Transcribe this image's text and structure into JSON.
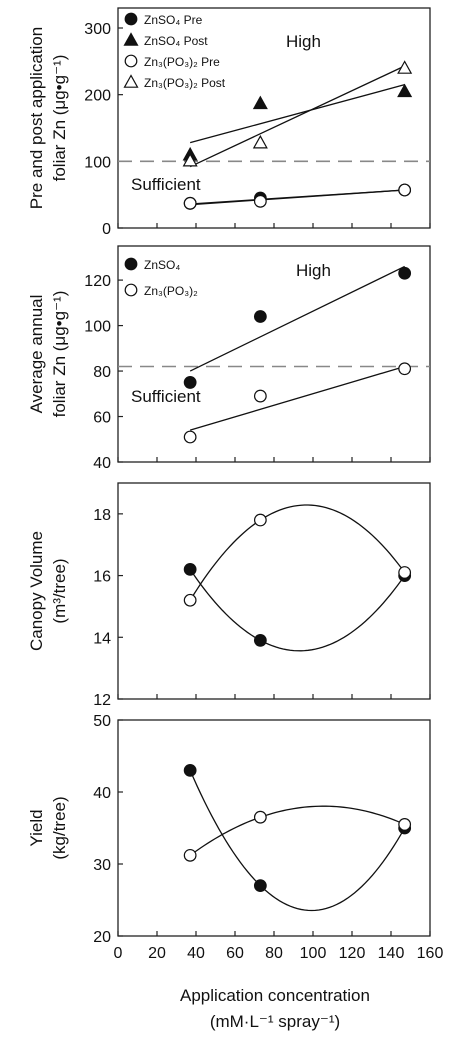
{
  "figure": {
    "xlabel_line1": "Application concentration",
    "xlabel_line2": "(mM·L⁻¹ spray⁻¹)"
  },
  "chart_data": [
    {
      "type": "scatter",
      "ylabel_line1": "Pre and post application",
      "ylabel_line2": "foliar Zn (μg•g⁻¹)",
      "xlim": [
        0,
        160
      ],
      "ylim": [
        0,
        330
      ],
      "xticks": [],
      "yticks": [
        0,
        100,
        200,
        300
      ],
      "reference_line": 100,
      "region_labels": {
        "high": "High",
        "sufficient": "Sufficient"
      },
      "legend_position": "top-left",
      "series": [
        {
          "name": "ZnSO₄ Pre",
          "marker": "circle",
          "filled": true,
          "x": [
            37,
            73,
            147
          ],
          "y": [
            37,
            45,
            57
          ],
          "fit": "linear",
          "fit_line": [
            [
              37,
              36
            ],
            [
              147,
              57
            ]
          ]
        },
        {
          "name": "ZnSO₄ Post",
          "marker": "triangle",
          "filled": true,
          "x": [
            37,
            73,
            147
          ],
          "y": [
            110,
            187,
            205
          ],
          "fit": "linear",
          "fit_line": [
            [
              37,
              128
            ],
            [
              147,
              215
            ]
          ]
        },
        {
          "name": "Zn₃(PO₃)₂ Pre",
          "marker": "circle",
          "filled": false,
          "x": [
            37,
            73,
            147
          ],
          "y": [
            37,
            40,
            57
          ],
          "fit": "linear",
          "fit_line": [
            [
              37,
              35
            ],
            [
              147,
              57
            ]
          ]
        },
        {
          "name": "Zn₃(PO₃)₂ Post",
          "marker": "triangle",
          "filled": false,
          "x": [
            37,
            73,
            147
          ],
          "y": [
            101,
            128,
            240
          ],
          "fit": "linear",
          "fit_line": [
            [
              37,
              92
            ],
            [
              147,
              243
            ]
          ]
        }
      ]
    },
    {
      "type": "scatter",
      "ylabel_line1": "Average annual",
      "ylabel_line2": "foliar Zn (μg•g⁻¹)",
      "xlim": [
        0,
        160
      ],
      "ylim": [
        40,
        135
      ],
      "xticks": [],
      "yticks": [
        40,
        60,
        80,
        100,
        120
      ],
      "reference_line": 82,
      "region_labels": {
        "high": "High",
        "sufficient": "Sufficient"
      },
      "legend_position": "top-left",
      "series": [
        {
          "name": "ZnSO₄",
          "marker": "circle",
          "filled": true,
          "x": [
            37,
            73,
            147
          ],
          "y": [
            75,
            104,
            123
          ],
          "fit": "linear",
          "fit_line": [
            [
              37,
              80
            ],
            [
              147,
              126
            ]
          ]
        },
        {
          "name": "Zn₃(PO₃)₂",
          "marker": "circle",
          "filled": false,
          "x": [
            37,
            73,
            147
          ],
          "y": [
            51,
            69,
            81
          ],
          "fit": "linear",
          "fit_line": [
            [
              37,
              54
            ],
            [
              147,
              82
            ]
          ]
        }
      ]
    },
    {
      "type": "scatter",
      "ylabel_line1": "Canopy Volume",
      "ylabel_line2": "(m³/tree)",
      "xlim": [
        0,
        160
      ],
      "ylim": [
        12,
        19
      ],
      "xticks": [],
      "yticks": [
        12,
        14,
        16,
        18
      ],
      "series": [
        {
          "name": "",
          "marker": "circle",
          "filled": true,
          "x": [
            37,
            73,
            147
          ],
          "y": [
            16.2,
            13.9,
            16.0
          ],
          "fit": "quadratic"
        },
        {
          "name": "",
          "marker": "circle",
          "filled": false,
          "x": [
            37,
            73,
            147
          ],
          "y": [
            15.2,
            17.8,
            16.1
          ],
          "fit": "quadratic"
        }
      ]
    },
    {
      "type": "scatter",
      "ylabel_line1": "Yield",
      "ylabel_line2": "(kg/tree)",
      "xlim": [
        0,
        160
      ],
      "ylim": [
        20,
        50
      ],
      "xticks": [
        0,
        20,
        40,
        60,
        80,
        100,
        120,
        140,
        160
      ],
      "yticks": [
        20,
        30,
        40,
        50
      ],
      "series": [
        {
          "name": "",
          "marker": "circle",
          "filled": true,
          "x": [
            37,
            73,
            147
          ],
          "y": [
            43.0,
            27.0,
            35.0
          ],
          "fit": "quadratic"
        },
        {
          "name": "",
          "marker": "circle",
          "filled": false,
          "x": [
            37,
            73,
            147
          ],
          "y": [
            31.2,
            36.5,
            35.5
          ],
          "fit": "quadratic"
        }
      ]
    }
  ]
}
